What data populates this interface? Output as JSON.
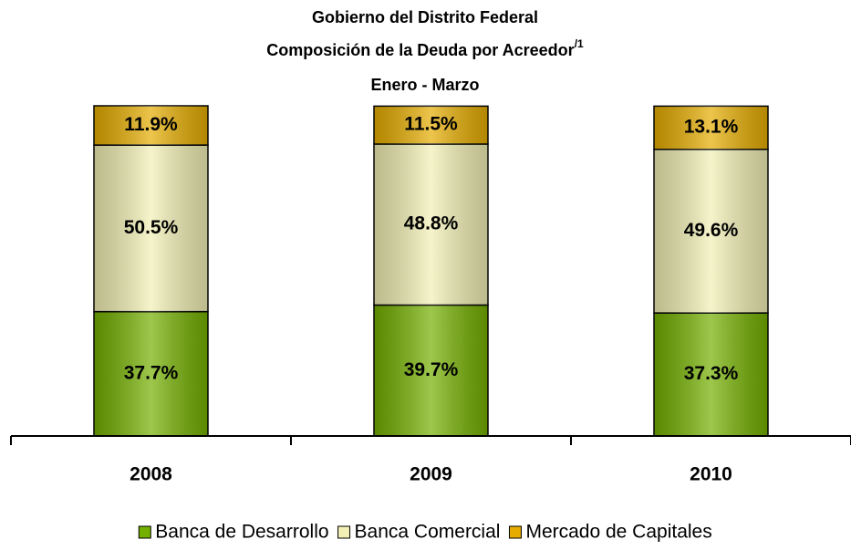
{
  "chart_data": {
    "type": "stacked_bar",
    "title": [
      "Gobierno del Distrito Federal",
      "Composición de la Deuda por Acreedor",
      "Enero - Marzo"
    ],
    "title_superscript": "/1",
    "categories": [
      "2008",
      "2009",
      "2010"
    ],
    "series": [
      {
        "name": "Banca de Desarrollo",
        "color": "#74b000",
        "values": [
          37.7,
          39.7,
          37.3
        ],
        "value_labels": [
          "37.7%",
          "39.7%",
          "37.3%"
        ]
      },
      {
        "name": "Banca Comercial",
        "color": "#f2f0b4",
        "values": [
          50.5,
          48.8,
          49.6
        ],
        "value_labels": [
          "50.5%",
          "48.8%",
          "49.6%"
        ]
      },
      {
        "name": "Mercado de Capitales",
        "color": "#e6ad00",
        "values": [
          11.9,
          11.5,
          13.1
        ],
        "value_labels": [
          "11.9%",
          "11.5%",
          "13.1%"
        ]
      }
    ],
    "legend": "bottom"
  }
}
